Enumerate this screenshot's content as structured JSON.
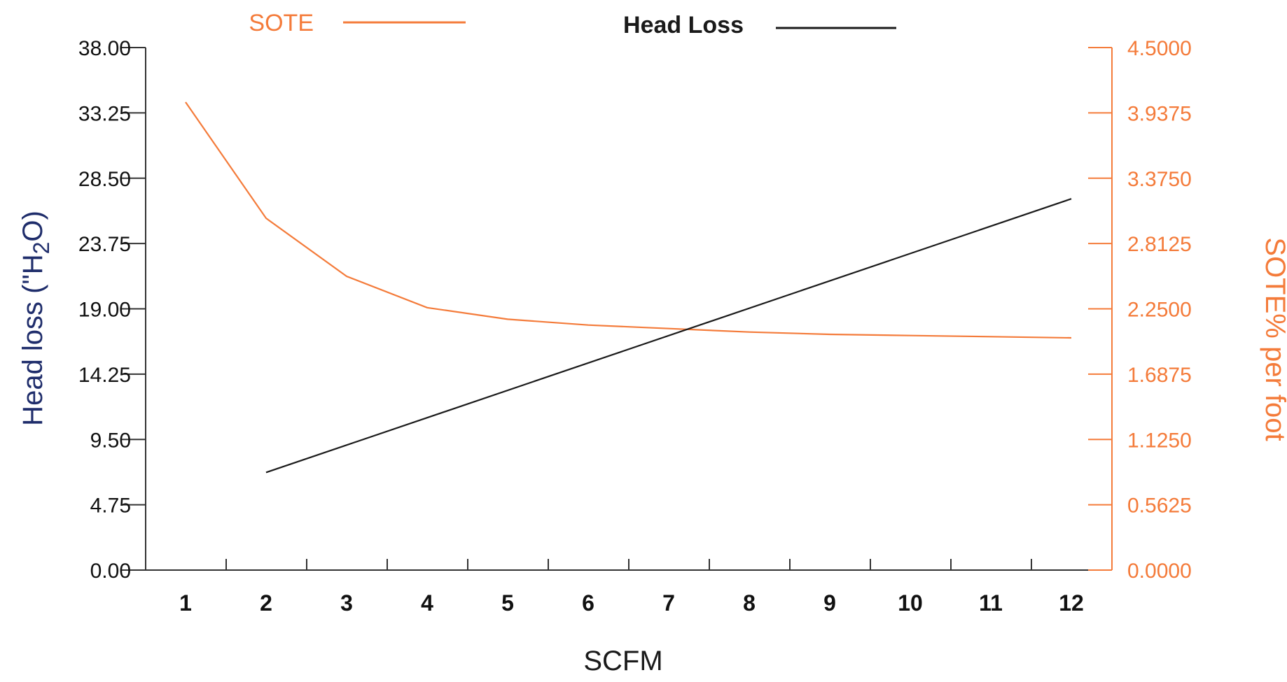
{
  "colors": {
    "sote": "#F47B3A",
    "head_loss": "#1a1a1a",
    "left_title": "#1f2d6b",
    "axis": "#333333"
  },
  "legend": {
    "sote_label": "SOTE",
    "head_loss_label": "Head Loss"
  },
  "chart_data": {
    "type": "line",
    "xlabel": "SCFM",
    "ylabel_left": "Head loss (\"H2O)",
    "ylabel_left_parts": [
      "Head loss (\"H",
      "2",
      "O)"
    ],
    "ylabel_right": "SOTE% per foot",
    "x": [
      1,
      2,
      3,
      4,
      5,
      6,
      7,
      8,
      9,
      10,
      11,
      12
    ],
    "x_tick_labels": [
      "1",
      "2",
      "3",
      "4",
      "5",
      "6",
      "7",
      "8",
      "9",
      "10",
      "11",
      "12"
    ],
    "ylim_left": [
      0,
      38
    ],
    "ylim_right": [
      0,
      4.5
    ],
    "y_left_tick_labels": [
      "0.00",
      "4.75",
      "9.50",
      "14.25",
      "19.00",
      "23.75",
      "28.50",
      "33.25",
      "38.00"
    ],
    "y_right_tick_labels": [
      "0.0000",
      "0.5625",
      "1.1250",
      "1.6875",
      "2.2500",
      "2.8125",
      "3.3750",
      "3.9375",
      "4.5000"
    ],
    "series": [
      {
        "name": "SOTE",
        "axis": "right",
        "x": [
          1,
          2,
          3,
          4,
          5,
          6,
          7,
          8,
          9,
          10,
          11,
          12
        ],
        "values": [
          4.03,
          3.03,
          2.53,
          2.26,
          2.16,
          2.11,
          2.08,
          2.05,
          2.03,
          2.02,
          2.01,
          2.0
        ]
      },
      {
        "name": "Head Loss",
        "axis": "left",
        "x": [
          2,
          12
        ],
        "values": [
          7.1,
          27.0
        ]
      }
    ],
    "grid": false,
    "legend_position": "top"
  }
}
